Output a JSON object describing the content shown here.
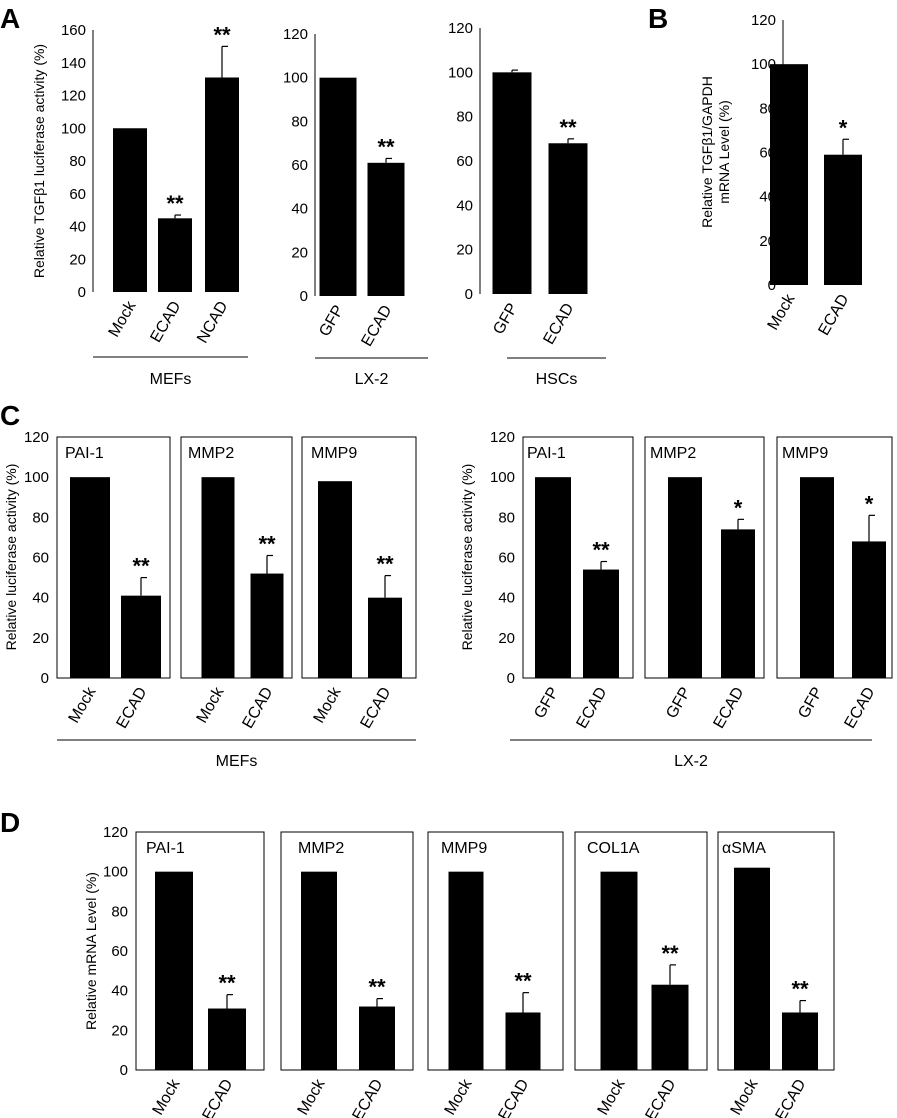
{
  "panel_letters": [
    "A",
    "B",
    "C",
    "D"
  ],
  "chart_data": [
    {
      "id": "A-MEFs",
      "type": "bar",
      "panel": "A",
      "title": "",
      "group_label": "MEFs",
      "ylabel": "Relative TGFβ1 luciferase activity (%)",
      "ylim": [
        0,
        160
      ],
      "yticks": [
        0,
        20,
        40,
        60,
        80,
        100,
        120,
        140,
        160
      ],
      "categories": [
        "Mock",
        "ECAD",
        "NCAD"
      ],
      "values": [
        100,
        45,
        131
      ],
      "errors": [
        0,
        2,
        19
      ],
      "significance": [
        "",
        "**",
        "**"
      ]
    },
    {
      "id": "A-LX2",
      "type": "bar",
      "panel": "A",
      "title": "",
      "group_label": "LX-2",
      "ylabel": "",
      "ylim": [
        0,
        120
      ],
      "yticks": [
        0,
        20,
        40,
        60,
        80,
        100,
        120
      ],
      "categories": [
        "GFP",
        "ECAD"
      ],
      "values": [
        100,
        61
      ],
      "errors": [
        0,
        2
      ],
      "significance": [
        "",
        "**"
      ]
    },
    {
      "id": "A-HSCs",
      "type": "bar",
      "panel": "A",
      "title": "",
      "group_label": "HSCs",
      "ylabel": "",
      "ylim": [
        0,
        120
      ],
      "yticks": [
        0,
        20,
        40,
        60,
        80,
        100,
        120
      ],
      "categories": [
        "GFP",
        "ECAD"
      ],
      "values": [
        100,
        68
      ],
      "errors": [
        1,
        2
      ],
      "significance": [
        "",
        "**"
      ]
    },
    {
      "id": "B",
      "type": "bar",
      "panel": "B",
      "title": "",
      "group_label": "",
      "ylabel": "Relative TGFβ1/GAPDH mRNA Level (%)",
      "ylim": [
        0,
        120
      ],
      "yticks": [
        0,
        20,
        40,
        60,
        80,
        100,
        120
      ],
      "categories": [
        "Mock",
        "ECAD"
      ],
      "values": [
        100,
        59
      ],
      "errors": [
        0,
        7
      ],
      "significance": [
        "",
        "*"
      ]
    },
    {
      "id": "C-MEFs-PAI1",
      "type": "bar",
      "panel": "C",
      "title": "PAI-1",
      "group_label": "",
      "ylabel": "Relative luciferase activity (%)",
      "ylim": [
        0,
        120
      ],
      "yticks": [
        0,
        20,
        40,
        60,
        80,
        100,
        120
      ],
      "categories": [
        "Mock",
        "ECAD"
      ],
      "values": [
        100,
        41
      ],
      "errors": [
        0,
        9
      ],
      "significance": [
        "",
        "**"
      ]
    },
    {
      "id": "C-MEFs-MMP2",
      "type": "bar",
      "panel": "C",
      "title": "MMP2",
      "group_label": "",
      "ylabel": "",
      "ylim": [
        0,
        120
      ],
      "yticks": [],
      "categories": [
        "Mock",
        "ECAD"
      ],
      "values": [
        100,
        52
      ],
      "errors": [
        0,
        9
      ],
      "significance": [
        "",
        "**"
      ]
    },
    {
      "id": "C-MEFs-MMP9",
      "type": "bar",
      "panel": "C",
      "title": "MMP9",
      "group_label": "",
      "ylabel": "",
      "ylim": [
        0,
        120
      ],
      "yticks": [],
      "categories": [
        "Mock",
        "ECAD"
      ],
      "values": [
        98,
        40
      ],
      "errors": [
        0,
        11
      ],
      "significance": [
        "",
        "**"
      ]
    },
    {
      "id": "C-LX2-PAI1",
      "type": "bar",
      "panel": "C",
      "title": "PAI-1",
      "group_label": "",
      "ylabel": "Relative luciferase activity (%)",
      "ylim": [
        0,
        120
      ],
      "yticks": [
        0,
        20,
        40,
        60,
        80,
        100,
        120
      ],
      "categories": [
        "GFP",
        "ECAD"
      ],
      "values": [
        100,
        54
      ],
      "errors": [
        0,
        4
      ],
      "significance": [
        "",
        "**"
      ]
    },
    {
      "id": "C-LX2-MMP2",
      "type": "bar",
      "panel": "C",
      "title": "MMP2",
      "group_label": "",
      "ylabel": "",
      "ylim": [
        0,
        120
      ],
      "yticks": [],
      "categories": [
        "GFP",
        "ECAD"
      ],
      "values": [
        100,
        74
      ],
      "errors": [
        0,
        5
      ],
      "significance": [
        "",
        "*"
      ]
    },
    {
      "id": "C-LX2-MMP9",
      "type": "bar",
      "panel": "C",
      "title": "MMP9",
      "group_label": "",
      "ylabel": "",
      "ylim": [
        0,
        120
      ],
      "yticks": [],
      "categories": [
        "GFP",
        "ECAD"
      ],
      "values": [
        100,
        68
      ],
      "errors": [
        0,
        13
      ],
      "significance": [
        "",
        "*"
      ]
    },
    {
      "id": "D-PAI1",
      "type": "bar",
      "panel": "D",
      "title": "PAI-1",
      "group_label": "",
      "ylabel": "Relative mRNA Level (%)",
      "ylim": [
        0,
        120
      ],
      "yticks": [
        0,
        20,
        40,
        60,
        80,
        100,
        120
      ],
      "categories": [
        "Mock",
        "ECAD"
      ],
      "values": [
        100,
        31
      ],
      "errors": [
        0,
        7
      ],
      "significance": [
        "",
        "**"
      ]
    },
    {
      "id": "D-MMP2",
      "type": "bar",
      "panel": "D",
      "title": "MMP2",
      "group_label": "",
      "ylabel": "",
      "ylim": [
        0,
        120
      ],
      "yticks": [],
      "categories": [
        "Mock",
        "ECAD"
      ],
      "values": [
        100,
        32
      ],
      "errors": [
        0,
        4
      ],
      "significance": [
        "",
        "**"
      ]
    },
    {
      "id": "D-MMP9",
      "type": "bar",
      "panel": "D",
      "title": "MMP9",
      "group_label": "",
      "ylabel": "",
      "ylim": [
        0,
        120
      ],
      "yticks": [],
      "categories": [
        "Mock",
        "ECAD"
      ],
      "values": [
        100,
        29
      ],
      "errors": [
        0,
        10
      ],
      "significance": [
        "",
        "**"
      ]
    },
    {
      "id": "D-COL1A",
      "type": "bar",
      "panel": "D",
      "title": "COL1A",
      "group_label": "",
      "ylabel": "",
      "ylim": [
        0,
        120
      ],
      "yticks": [],
      "categories": [
        "Mock",
        "ECAD"
      ],
      "values": [
        100,
        43
      ],
      "errors": [
        0,
        10
      ],
      "significance": [
        "",
        "**"
      ]
    },
    {
      "id": "D-aSMA",
      "type": "bar",
      "panel": "D",
      "title": "αSMA",
      "group_label": "",
      "ylabel": "",
      "ylim": [
        0,
        120
      ],
      "yticks": [],
      "categories": [
        "Mock",
        "ECAD"
      ],
      "values": [
        102,
        29
      ],
      "errors": [
        0,
        6
      ],
      "significance": [
        "",
        "**"
      ]
    }
  ],
  "group_spans": [
    {
      "id": "C-MEFs-group",
      "label": "MEFs"
    },
    {
      "id": "C-LX2-group",
      "label": "LX-2"
    }
  ]
}
